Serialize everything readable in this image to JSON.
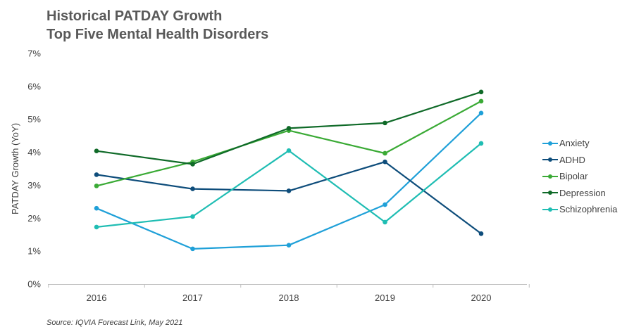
{
  "chart_data": {
    "type": "line",
    "title_lines": [
      "Historical PATDAY Growth",
      "Top Five Mental Health Disorders"
    ],
    "ylabel": "PATDAY Growth (YoY)",
    "xlabel": "",
    "categories": [
      "2016",
      "2017",
      "2018",
      "2019",
      "2020"
    ],
    "y_ticks": [
      "0%",
      "1%",
      "2%",
      "3%",
      "4%",
      "5%",
      "6%",
      "7%"
    ],
    "ylim": [
      0,
      7
    ],
    "grid": false,
    "legend_position": "right",
    "series": [
      {
        "name": "Anxiety",
        "color": "#1fa0d8",
        "values": [
          2.3,
          1.07,
          1.18,
          2.41,
          5.19
        ]
      },
      {
        "name": "ADHD",
        "color": "#0e4d7b",
        "values": [
          3.32,
          2.89,
          2.83,
          3.71,
          1.53
        ]
      },
      {
        "name": "Bipolar",
        "color": "#3aaa35",
        "values": [
          2.98,
          3.71,
          4.66,
          3.97,
          5.55
        ]
      },
      {
        "name": "Depression",
        "color": "#0f6a28",
        "values": [
          4.04,
          3.64,
          4.73,
          4.89,
          5.83
        ]
      },
      {
        "name": "Schizophrenia",
        "color": "#1fbdb3",
        "values": [
          1.73,
          2.05,
          4.05,
          1.88,
          4.27
        ]
      }
    ],
    "source": "Source: IQVIA Forecast Link, May 2021"
  }
}
